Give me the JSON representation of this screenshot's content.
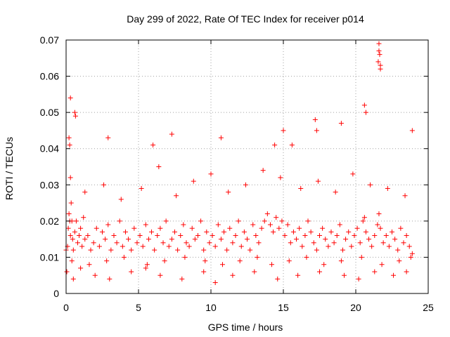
{
  "chart_data": {
    "type": "scatter",
    "title": "Day 299 of 2022, Rate Of TEC Index for receiver p014",
    "xlabel": "GPS time / hours",
    "ylabel": "ROTI / TECUs",
    "xlim": [
      0,
      25
    ],
    "ylim": [
      0,
      0.07
    ],
    "xticks": [
      0,
      5,
      10,
      15,
      20,
      25
    ],
    "yticks": [
      0,
      0.01,
      0.02,
      0.03,
      0.04,
      0.05,
      0.06,
      0.07
    ],
    "xtick_labels": [
      "0",
      "5",
      "10",
      "15",
      "20",
      "25"
    ],
    "ytick_labels": [
      "0",
      "0.01",
      "0.02",
      "0.03",
      "0.04",
      "0.05",
      "0.06",
      "0.07"
    ],
    "grid": true,
    "marker": "+",
    "color": "#ff0000",
    "series": [
      {
        "name": "ROTI",
        "x": [
          0.0,
          0.1,
          0.15,
          0.2,
          0.25,
          0.3,
          0.35,
          0.4,
          0.45,
          0.5,
          0.6,
          0.7,
          0.8,
          0.9,
          1.0,
          1.1,
          1.2,
          1.3,
          1.5,
          1.7,
          1.9,
          2.1,
          2.3,
          2.5,
          2.7,
          2.9,
          3.1,
          3.3,
          3.5,
          3.7,
          3.9,
          4.1,
          4.3,
          4.5,
          4.7,
          4.9,
          5.1,
          5.3,
          5.5,
          5.7,
          5.9,
          6.1,
          6.3,
          6.5,
          6.7,
          6.9,
          7.1,
          7.3,
          7.5,
          7.7,
          7.9,
          8.1,
          8.3,
          8.5,
          8.7,
          8.9,
          9.1,
          9.3,
          9.5,
          9.7,
          9.9,
          10.1,
          10.3,
          10.5,
          10.7,
          10.9,
          11.1,
          11.3,
          11.5,
          11.7,
          11.9,
          12.1,
          12.3,
          12.5,
          12.7,
          12.9,
          13.1,
          13.3,
          13.5,
          13.7,
          13.9,
          14.1,
          14.3,
          14.5,
          14.7,
          14.9,
          15.1,
          15.3,
          15.5,
          15.7,
          15.9,
          16.1,
          16.3,
          16.5,
          16.7,
          16.9,
          17.1,
          17.3,
          17.5,
          17.7,
          17.9,
          18.1,
          18.3,
          18.5,
          18.7,
          18.9,
          19.1,
          19.3,
          19.5,
          19.7,
          19.9,
          20.1,
          20.3,
          20.5,
          20.6,
          20.7,
          20.9,
          21.1,
          21.3,
          21.5,
          21.6,
          21.7,
          21.9,
          22.1,
          22.3,
          22.5,
          22.7,
          22.9,
          23.1,
          23.3,
          23.5,
          23.7,
          23.9,
          0.2,
          0.25,
          0.3,
          0.6,
          0.65,
          2.9,
          6.0,
          7.3,
          10.7,
          14.4,
          15.0,
          15.6,
          17.2,
          17.3,
          19.0,
          20.6,
          20.7,
          21.6,
          21.65,
          21.7,
          21.55,
          21.6,
          21.7,
          23.9,
          0.05,
          0.5,
          1.0,
          2.0,
          3.0,
          4.5,
          5.5,
          6.5,
          8.0,
          9.5,
          10.3,
          11.5,
          13.0,
          14.6,
          16.0,
          17.5,
          19.2,
          20.2,
          21.3,
          22.6,
          23.5,
          0.3,
          1.3,
          2.6,
          3.8,
          5.2,
          6.4,
          7.6,
          8.8,
          10.0,
          11.2,
          12.4,
          13.6,
          14.8,
          16.2,
          17.4,
          18.6,
          19.8,
          21.0,
          22.2,
          23.4,
          0.4,
          1.6,
          2.8,
          4.0,
          5.6,
          6.8,
          8.2,
          9.6,
          10.8,
          12.0,
          13.2,
          14.2,
          15.4,
          16.6,
          17.8,
          19.0,
          20.4,
          21.8,
          23.0,
          23.8
        ],
        "y": [
          0.012,
          0.013,
          0.018,
          0.022,
          0.02,
          0.016,
          0.025,
          0.02,
          0.015,
          0.012,
          0.017,
          0.02,
          0.014,
          0.016,
          0.018,
          0.013,
          0.021,
          0.015,
          0.016,
          0.012,
          0.014,
          0.018,
          0.013,
          0.017,
          0.015,
          0.019,
          0.012,
          0.016,
          0.014,
          0.02,
          0.013,
          0.017,
          0.015,
          0.012,
          0.018,
          0.014,
          0.016,
          0.013,
          0.019,
          0.015,
          0.017,
          0.012,
          0.016,
          0.018,
          0.014,
          0.02,
          0.013,
          0.015,
          0.017,
          0.012,
          0.016,
          0.019,
          0.014,
          0.013,
          0.018,
          0.015,
          0.016,
          0.02,
          0.012,
          0.017,
          0.014,
          0.016,
          0.013,
          0.019,
          0.015,
          0.017,
          0.012,
          0.018,
          0.014,
          0.016,
          0.02,
          0.013,
          0.017,
          0.015,
          0.012,
          0.019,
          0.016,
          0.014,
          0.018,
          0.02,
          0.022,
          0.019,
          0.017,
          0.021,
          0.018,
          0.02,
          0.016,
          0.019,
          0.014,
          0.017,
          0.015,
          0.018,
          0.013,
          0.016,
          0.02,
          0.017,
          0.014,
          0.012,
          0.016,
          0.018,
          0.015,
          0.013,
          0.017,
          0.014,
          0.016,
          0.019,
          0.012,
          0.015,
          0.017,
          0.013,
          0.016,
          0.018,
          0.014,
          0.02,
          0.021,
          0.017,
          0.015,
          0.013,
          0.016,
          0.019,
          0.022,
          0.018,
          0.014,
          0.016,
          0.013,
          0.017,
          0.015,
          0.012,
          0.018,
          0.014,
          0.016,
          0.013,
          0.011,
          0.043,
          0.041,
          0.054,
          0.05,
          0.049,
          0.043,
          0.041,
          0.044,
          0.043,
          0.041,
          0.045,
          0.041,
          0.048,
          0.045,
          0.047,
          0.052,
          0.05,
          0.069,
          0.066,
          0.062,
          0.064,
          0.067,
          0.063,
          0.045,
          0.006,
          0.004,
          0.007,
          0.005,
          0.004,
          0.006,
          0.007,
          0.005,
          0.004,
          0.006,
          0.003,
          0.005,
          0.006,
          0.004,
          0.005,
          0.006,
          0.005,
          0.004,
          0.006,
          0.005,
          0.006,
          0.032,
          0.028,
          0.03,
          0.026,
          0.029,
          0.035,
          0.027,
          0.031,
          0.033,
          0.028,
          0.03,
          0.034,
          0.032,
          0.029,
          0.031,
          0.028,
          0.033,
          0.03,
          0.029,
          0.027,
          0.009,
          0.008,
          0.009,
          0.01,
          0.008,
          0.009,
          0.01,
          0.009,
          0.008,
          0.009,
          0.01,
          0.008,
          0.009,
          0.01,
          0.008,
          0.009,
          0.01,
          0.008,
          0.009,
          0.01
        ]
      }
    ]
  }
}
